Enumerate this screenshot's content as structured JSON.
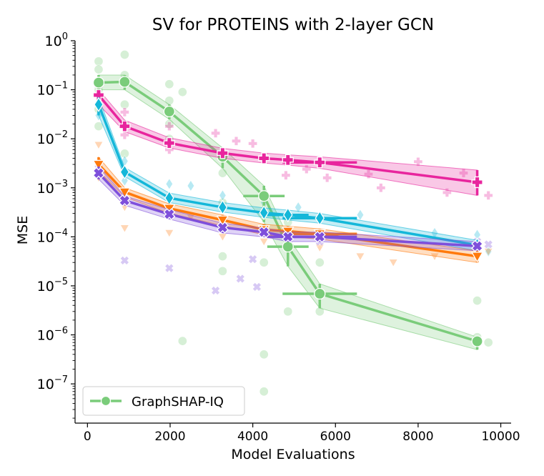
{
  "chart_data": {
    "type": "line",
    "title": "SV for PROTEINS with 2-layer GCN",
    "xlabel": "Model Evaluations",
    "ylabel": "MSE",
    "xlim": [
      -300,
      10250
    ],
    "ylim_log10": [
      -7.8,
      0
    ],
    "yscale": "log",
    "x_ticks": [
      0,
      2000,
      4000,
      6000,
      8000,
      10000
    ],
    "x_tick_labels": [
      "0",
      "2000",
      "4000",
      "6000",
      "8000",
      "10000"
    ],
    "y_ticks_log10": [
      0,
      -1,
      -2,
      -3,
      -4,
      -5,
      -6,
      -7
    ],
    "y_tick_labels": [
      {
        "base": "10",
        "exp": "0"
      },
      {
        "base": "10",
        "exp": "−1"
      },
      {
        "base": "10",
        "exp": "−2"
      },
      {
        "base": "10",
        "exp": "−3"
      },
      {
        "base": "10",
        "exp": "−4"
      },
      {
        "base": "10",
        "exp": "−5"
      },
      {
        "base": "10",
        "exp": "−6"
      },
      {
        "base": "10",
        "exp": "−7"
      }
    ],
    "grid": false,
    "legend": {
      "position": "bottom-left",
      "entries": [
        "GraphSHAP-IQ"
      ]
    },
    "series": [
      {
        "name": "GraphSHAP-IQ",
        "color": "#7acc7a",
        "marker": "circle",
        "points": [
          {
            "x": 270,
            "y": 0.14
          },
          {
            "x": 900,
            "y": 0.145
          },
          {
            "x": 1980,
            "y": 0.036
          },
          {
            "x": 3270,
            "y": 0.0043
          },
          {
            "x": 4270,
            "y": 0.00068
          },
          {
            "x": 4850,
            "y": 6.3e-05
          },
          {
            "x": 5620,
            "y": 6.9e-06
          },
          {
            "x": 9430,
            "y": 7.4e-07
          }
        ],
        "band_lower": [
          0.1,
          0.1,
          0.025,
          0.0025,
          0.0002,
          2.5e-05,
          3.5e-06,
          5e-07
        ],
        "band_upper": [
          0.2,
          0.2,
          0.05,
          0.0065,
          0.0011,
          0.0001,
          1.1e-05,
          9e-07
        ],
        "xerr": [
          0,
          0,
          0,
          0,
          500,
          500,
          900,
          0
        ],
        "scatter": [
          {
            "x": 270,
            "y": 0.38
          },
          {
            "x": 270,
            "y": 0.26
          },
          {
            "x": 270,
            "y": 0.1
          },
          {
            "x": 270,
            "y": 0.04
          },
          {
            "x": 270,
            "y": 0.018
          },
          {
            "x": 900,
            "y": 0.52
          },
          {
            "x": 900,
            "y": 0.2
          },
          {
            "x": 900,
            "y": 0.05
          },
          {
            "x": 900,
            "y": 0.02
          },
          {
            "x": 900,
            "y": 0.005
          },
          {
            "x": 1980,
            "y": 0.13
          },
          {
            "x": 1980,
            "y": 0.06
          },
          {
            "x": 1980,
            "y": 0.02
          },
          {
            "x": 1980,
            "y": 0.01
          },
          {
            "x": 2300,
            "y": 0.09
          },
          {
            "x": 3270,
            "y": 0.002
          },
          {
            "x": 3270,
            "y": 0.0005
          },
          {
            "x": 3270,
            "y": 4e-05
          },
          {
            "x": 3270,
            "y": 2e-05
          },
          {
            "x": 4270,
            "y": 0.00015
          },
          {
            "x": 4270,
            "y": 3e-05
          },
          {
            "x": 4270,
            "y": 4e-07
          },
          {
            "x": 4270,
            "y": 7e-08
          },
          {
            "x": 4850,
            "y": 0.0002
          },
          {
            "x": 4850,
            "y": 3e-06
          },
          {
            "x": 5620,
            "y": 3e-05
          },
          {
            "x": 5620,
            "y": 3e-06
          },
          {
            "x": 9430,
            "y": 5e-06
          },
          {
            "x": 9430,
            "y": 9e-07
          },
          {
            "x": 9700,
            "y": 7e-07
          },
          {
            "x": 2300,
            "y": 7.5e-07
          }
        ]
      },
      {
        "name": "",
        "color": "#e8259d",
        "marker": "plus",
        "points": [
          {
            "x": 270,
            "y": 0.078
          },
          {
            "x": 900,
            "y": 0.018
          },
          {
            "x": 1980,
            "y": 0.0082
          },
          {
            "x": 3270,
            "y": 0.0051
          },
          {
            "x": 4270,
            "y": 0.004
          },
          {
            "x": 4850,
            "y": 0.0037
          },
          {
            "x": 5620,
            "y": 0.0033
          },
          {
            "x": 9430,
            "y": 0.0013
          }
        ],
        "band_lower": [
          0.05,
          0.014,
          0.0065,
          0.004,
          0.0032,
          0.0029,
          0.0025,
          0.0007
        ],
        "band_upper": [
          0.1,
          0.024,
          0.0105,
          0.0064,
          0.0051,
          0.0047,
          0.0043,
          0.0023
        ],
        "xerr": [
          0,
          0,
          0,
          0,
          0,
          0,
          900,
          0
        ],
        "scatter": [
          {
            "x": 270,
            "y": 0.12
          },
          {
            "x": 270,
            "y": 0.05
          },
          {
            "x": 900,
            "y": 0.035
          },
          {
            "x": 900,
            "y": 0.012
          },
          {
            "x": 1980,
            "y": 0.018
          },
          {
            "x": 1980,
            "y": 0.006
          },
          {
            "x": 3100,
            "y": 0.013
          },
          {
            "x": 3600,
            "y": 0.009
          },
          {
            "x": 4000,
            "y": 0.008
          },
          {
            "x": 4800,
            "y": 0.0018
          },
          {
            "x": 5300,
            "y": 0.0024
          },
          {
            "x": 5800,
            "y": 0.0016
          },
          {
            "x": 6800,
            "y": 0.0019
          },
          {
            "x": 7100,
            "y": 0.001
          },
          {
            "x": 8000,
            "y": 0.0034
          },
          {
            "x": 8700,
            "y": 0.0008
          },
          {
            "x": 9100,
            "y": 0.002
          },
          {
            "x": 9700,
            "y": 0.0007
          }
        ]
      },
      {
        "name": "",
        "color": "#14b7d9",
        "marker": "diamond",
        "points": [
          {
            "x": 270,
            "y": 0.05
          },
          {
            "x": 900,
            "y": 0.0021
          },
          {
            "x": 1980,
            "y": 0.00062
          },
          {
            "x": 3270,
            "y": 0.0004
          },
          {
            "x": 4270,
            "y": 0.00031
          },
          {
            "x": 4850,
            "y": 0.00028
          },
          {
            "x": 5620,
            "y": 0.00024
          },
          {
            "x": 9430,
            "y": 6.8e-05
          }
        ],
        "band_lower": [
          0.03,
          0.0017,
          0.0005,
          0.00032,
          0.00025,
          0.00022,
          0.00019,
          5.2e-05
        ],
        "band_upper": [
          0.07,
          0.0026,
          0.00078,
          0.0005,
          0.00039,
          0.00035,
          0.0003,
          8.5e-05
        ],
        "xerr": [
          0,
          0,
          0,
          0,
          0,
          500,
          900,
          0
        ],
        "scatter": [
          {
            "x": 270,
            "y": 0.03
          },
          {
            "x": 900,
            "y": 0.0035
          },
          {
            "x": 900,
            "y": 0.0014
          },
          {
            "x": 1980,
            "y": 0.0012
          },
          {
            "x": 2500,
            "y": 0.0011
          },
          {
            "x": 3270,
            "y": 0.0007
          },
          {
            "x": 4270,
            "y": 0.0005
          },
          {
            "x": 5100,
            "y": 0.0004
          },
          {
            "x": 6600,
            "y": 0.00028
          },
          {
            "x": 8400,
            "y": 0.00012
          },
          {
            "x": 9430,
            "y": 0.00011
          },
          {
            "x": 9700,
            "y": 5e-05
          }
        ]
      },
      {
        "name": "",
        "color": "#ff7a0d",
        "marker": "triangle-down",
        "points": [
          {
            "x": 270,
            "y": 0.003
          },
          {
            "x": 900,
            "y": 0.00082
          },
          {
            "x": 1980,
            "y": 0.00038
          },
          {
            "x": 3270,
            "y": 0.00022
          },
          {
            "x": 4270,
            "y": 0.00014
          },
          {
            "x": 4850,
            "y": 0.00013
          },
          {
            "x": 5620,
            "y": 0.000115
          },
          {
            "x": 9430,
            "y": 4e-05
          }
        ],
        "band_lower": [
          0.0022,
          0.00065,
          0.0003,
          0.00017,
          0.00011,
          0.0001,
          9e-05,
          3e-05
        ],
        "band_upper": [
          0.0042,
          0.001,
          0.00047,
          0.00028,
          0.00018,
          0.000165,
          0.000145,
          5.2e-05
        ],
        "xerr": [
          0,
          0,
          0,
          0,
          0,
          0,
          900,
          0
        ],
        "scatter": [
          {
            "x": 270,
            "y": 0.0075
          },
          {
            "x": 270,
            "y": 0.0016
          },
          {
            "x": 900,
            "y": 0.0004
          },
          {
            "x": 900,
            "y": 0.00015
          },
          {
            "x": 1980,
            "y": 0.00012
          },
          {
            "x": 2500,
            "y": 0.00025
          },
          {
            "x": 3270,
            "y": 0.0001
          },
          {
            "x": 4270,
            "y": 8e-05
          },
          {
            "x": 5620,
            "y": 6e-05
          },
          {
            "x": 6600,
            "y": 4e-05
          },
          {
            "x": 7400,
            "y": 3e-05
          },
          {
            "x": 8400,
            "y": 4e-05
          },
          {
            "x": 9700,
            "y": 5e-05
          }
        ]
      },
      {
        "name": "",
        "color": "#7e4fdb",
        "marker": "x",
        "points": [
          {
            "x": 270,
            "y": 0.002
          },
          {
            "x": 900,
            "y": 0.00055
          },
          {
            "x": 1980,
            "y": 0.00029
          },
          {
            "x": 3270,
            "y": 0.000155
          },
          {
            "x": 4270,
            "y": 0.000125
          },
          {
            "x": 4850,
            "y": 0.0001
          },
          {
            "x": 5620,
            "y": 0.0001
          },
          {
            "x": 9430,
            "y": 6.5e-05
          }
        ],
        "band_lower": [
          0.0015,
          0.00044,
          0.00023,
          0.00012,
          0.0001,
          8e-05,
          8e-05,
          5.2e-05
        ],
        "band_upper": [
          0.0027,
          0.00068,
          0.00036,
          0.00019,
          0.00015,
          0.000125,
          0.000125,
          8e-05
        ],
        "xerr": [
          0,
          0,
          0,
          0,
          0,
          500,
          900,
          0
        ],
        "scatter": [
          {
            "x": 270,
            "y": 0.003
          },
          {
            "x": 900,
            "y": 3.3e-05
          },
          {
            "x": 1980,
            "y": 2.3e-05
          },
          {
            "x": 3100,
            "y": 8e-06
          },
          {
            "x": 3700,
            "y": 1.4e-05
          },
          {
            "x": 4000,
            "y": 3.5e-05
          },
          {
            "x": 4100,
            "y": 9.5e-06
          },
          {
            "x": 5620,
            "y": 8e-05
          },
          {
            "x": 9430,
            "y": 8e-05
          },
          {
            "x": 9700,
            "y": 7e-05
          }
        ]
      }
    ]
  }
}
